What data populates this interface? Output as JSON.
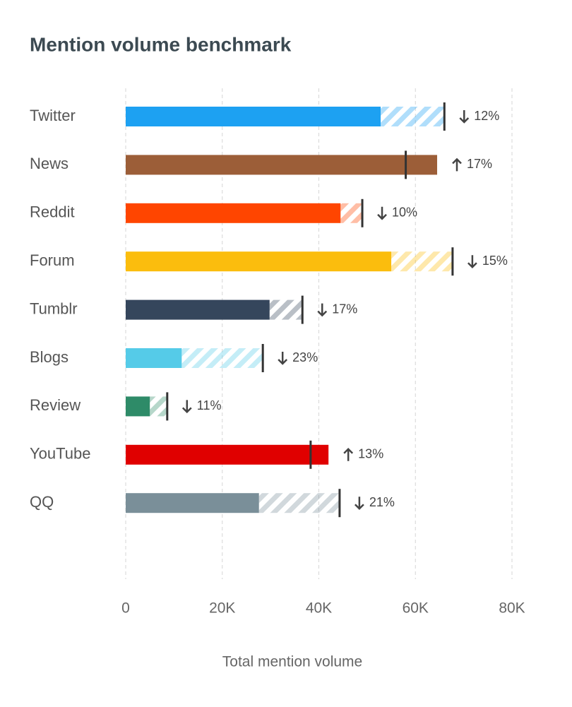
{
  "chart_data": {
    "type": "bullet",
    "title": "Mention volume benchmark",
    "x_label": "Total mention volume",
    "categories": [
      "Twitter",
      "News",
      "Reddit",
      "Forum",
      "Tumblr",
      "Blogs",
      "Review",
      "YouTube",
      "QQ"
    ],
    "values": [
      52800,
      64500,
      44500,
      55000,
      29800,
      11600,
      5000,
      42000,
      27600
    ],
    "targets": [
      66000,
      58000,
      49000,
      67700,
      36600,
      28400,
      8600,
      38300,
      44300
    ],
    "colors": [
      "#1da1f2",
      "#9c5e38",
      "#ff4500",
      "#fbbd0d",
      "#35465c",
      "#55cbe8",
      "#2e8b68",
      "#e00000",
      "#7a8f99"
    ],
    "changes": {
      "values": [
        12,
        17,
        10,
        15,
        17,
        23,
        11,
        13,
        21
      ],
      "value_labels": [
        "12%",
        "17%",
        "10%",
        "15%",
        "17%",
        "23%",
        "11%",
        "13%",
        "21%"
      ],
      "directions": [
        "down",
        "up",
        "down",
        "down",
        "down",
        "down",
        "down",
        "up",
        "down"
      ]
    },
    "xlim": [
      0,
      80000
    ],
    "xticks": [
      0,
      {
        "value": 20000,
        "label": "20K"
      },
      {
        "value": 40000,
        "label": "40K"
      },
      {
        "value": 60000,
        "label": "60K"
      },
      {
        "value": 80000,
        "label": "80K"
      }
    ],
    "grid": true
  }
}
